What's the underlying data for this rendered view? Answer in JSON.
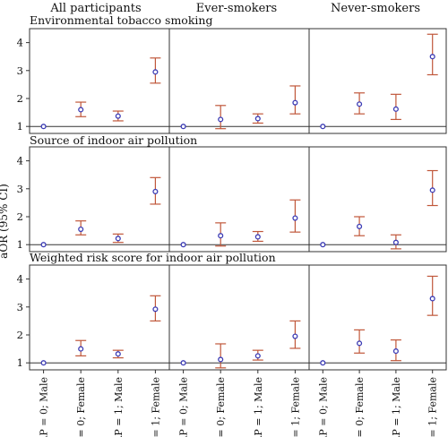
{
  "chart_data": {
    "type": "scatter",
    "ylabel": "aOR (95% CI)",
    "ylim": [
      0.75,
      4.5
    ],
    "yticks": [
      1,
      2,
      3,
      4
    ],
    "columns": [
      "All participants",
      "Ever-smokers",
      "Never-smokers"
    ],
    "categories": [
      "IAP = 0; Male",
      "IAP = 0; Female",
      "IAP = 1; Male",
      "IAP = 1; Female"
    ],
    "colors": {
      "point": "#3b3bb5",
      "ci": "#c0573a",
      "frame": "#333333",
      "reference": "#333333"
    },
    "rows": [
      {
        "title": "Environmental tobacco smoking",
        "panels": [
          {
            "column": "All participants",
            "est": [
              1.0,
              1.6,
              1.37,
              2.95
            ],
            "lower": [
              1.0,
              1.35,
              1.2,
              2.55
            ],
            "upper": [
              1.0,
              1.87,
              1.55,
              3.45
            ]
          },
          {
            "column": "Ever-smokers",
            "est": [
              1.0,
              1.25,
              1.28,
              1.85
            ],
            "lower": [
              1.0,
              0.92,
              1.12,
              1.45
            ],
            "upper": [
              1.0,
              1.75,
              1.45,
              2.45
            ]
          },
          {
            "column": "Never-smokers",
            "est": [
              1.0,
              1.8,
              1.62,
              3.5
            ],
            "lower": [
              1.0,
              1.45,
              1.25,
              2.85
            ],
            "upper": [
              1.0,
              2.2,
              2.15,
              4.3
            ]
          }
        ]
      },
      {
        "title": "Source of indoor air pollution",
        "panels": [
          {
            "column": "All participants",
            "est": [
              1.0,
              1.55,
              1.22,
              2.9
            ],
            "lower": [
              1.0,
              1.35,
              1.08,
              2.45
            ],
            "upper": [
              1.0,
              1.85,
              1.38,
              3.4
            ]
          },
          {
            "column": "Ever-smokers",
            "est": [
              1.0,
              1.32,
              1.28,
              1.95
            ],
            "lower": [
              1.0,
              0.95,
              1.12,
              1.45
            ],
            "upper": [
              1.0,
              1.78,
              1.47,
              2.6
            ]
          },
          {
            "column": "Never-smokers",
            "est": [
              1.0,
              1.65,
              1.08,
              2.95
            ],
            "lower": [
              1.0,
              1.32,
              0.85,
              2.4
            ],
            "upper": [
              1.0,
              2.0,
              1.35,
              3.65
            ]
          }
        ]
      },
      {
        "title": "Weighted risk score for indoor air pollution",
        "panels": [
          {
            "column": "All participants",
            "est": [
              1.0,
              1.5,
              1.32,
              2.92
            ],
            "lower": [
              1.0,
              1.25,
              1.18,
              2.5
            ],
            "upper": [
              1.0,
              1.8,
              1.45,
              3.4
            ]
          },
          {
            "column": "Ever-smokers",
            "est": [
              1.0,
              1.12,
              1.25,
              1.95
            ],
            "lower": [
              1.0,
              0.82,
              1.1,
              1.52
            ],
            "upper": [
              1.0,
              1.68,
              1.45,
              2.5
            ]
          },
          {
            "column": "Never-smokers",
            "est": [
              1.0,
              1.7,
              1.42,
              3.3
            ],
            "lower": [
              1.0,
              1.35,
              1.08,
              2.7
            ],
            "upper": [
              1.0,
              2.18,
              1.82,
              4.1
            ]
          }
        ]
      }
    ]
  }
}
